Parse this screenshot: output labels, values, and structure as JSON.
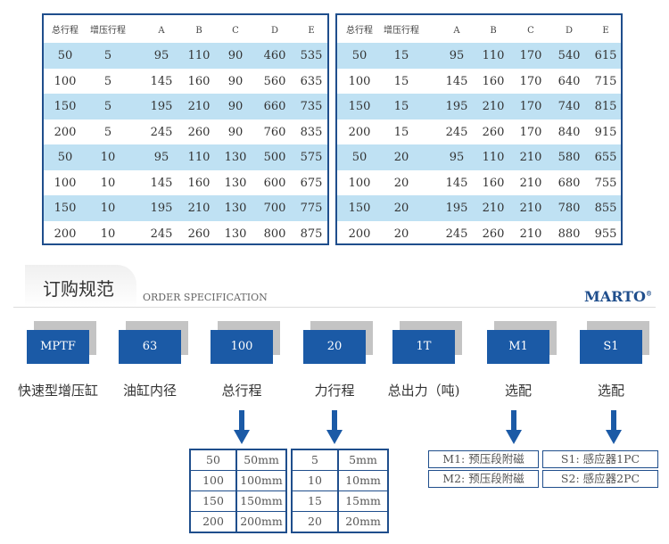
{
  "tables": [
    {
      "headers": [
        "总行程",
        "增压行程",
        "A",
        "B",
        "C",
        "D",
        "E"
      ],
      "rows": [
        [
          "50",
          "5",
          "95",
          "110",
          "90",
          "460",
          "535"
        ],
        [
          "100",
          "5",
          "145",
          "160",
          "90",
          "560",
          "635"
        ],
        [
          "150",
          "5",
          "195",
          "210",
          "90",
          "660",
          "735"
        ],
        [
          "200",
          "5",
          "245",
          "260",
          "90",
          "760",
          "835"
        ],
        [
          "50",
          "10",
          "95",
          "110",
          "130",
          "500",
          "575"
        ],
        [
          "100",
          "10",
          "145",
          "160",
          "130",
          "600",
          "675"
        ],
        [
          "150",
          "10",
          "195",
          "210",
          "130",
          "700",
          "775"
        ],
        [
          "200",
          "10",
          "245",
          "260",
          "130",
          "800",
          "875"
        ]
      ]
    },
    {
      "headers": [
        "总行程",
        "增压行程",
        "A",
        "B",
        "C",
        "D",
        "E"
      ],
      "rows": [
        [
          "50",
          "15",
          "95",
          "110",
          "170",
          "540",
          "615"
        ],
        [
          "100",
          "15",
          "145",
          "160",
          "170",
          "640",
          "715"
        ],
        [
          "150",
          "15",
          "195",
          "210",
          "170",
          "740",
          "815"
        ],
        [
          "200",
          "15",
          "245",
          "260",
          "170",
          "840",
          "915"
        ],
        [
          "50",
          "20",
          "95",
          "110",
          "210",
          "580",
          "655"
        ],
        [
          "100",
          "20",
          "145",
          "160",
          "210",
          "680",
          "755"
        ],
        [
          "150",
          "20",
          "195",
          "210",
          "210",
          "780",
          "855"
        ],
        [
          "200",
          "20",
          "245",
          "260",
          "210",
          "880",
          "955"
        ]
      ]
    }
  ],
  "section": {
    "title": "订购规范",
    "subtitle": "ORDER SPECIFICATION",
    "brand": "MARTO",
    "brand_mark": "®"
  },
  "codes": [
    {
      "code": "MPTF",
      "label": "快速型增压缸"
    },
    {
      "code": "63",
      "label": "油缸内径"
    },
    {
      "code": "100",
      "label": "总行程"
    },
    {
      "code": "20",
      "label": "力行程"
    },
    {
      "code": "1T",
      "label": "总出力（吨)"
    },
    {
      "code": "M1",
      "label": "选配"
    },
    {
      "code": "S1",
      "label": "选配"
    }
  ],
  "stroke_options": [
    [
      "50",
      "50mm"
    ],
    [
      "100",
      "100mm"
    ],
    [
      "150",
      "150mm"
    ],
    [
      "200",
      "200mm"
    ]
  ],
  "force_stroke_options": [
    [
      "5",
      "5mm"
    ],
    [
      "10",
      "10mm"
    ],
    [
      "15",
      "15mm"
    ],
    [
      "20",
      "20mm"
    ]
  ],
  "m_options": [
    "M1: 预压段附磁",
    "M2: 预压段附磁"
  ],
  "s_options": [
    "S1: 感应器1PC",
    "S2: 感应器2PC"
  ],
  "colors": {
    "primary": "#1b5aa6",
    "border": "#1f4e8c",
    "row_shade": "#bfe1f3"
  }
}
